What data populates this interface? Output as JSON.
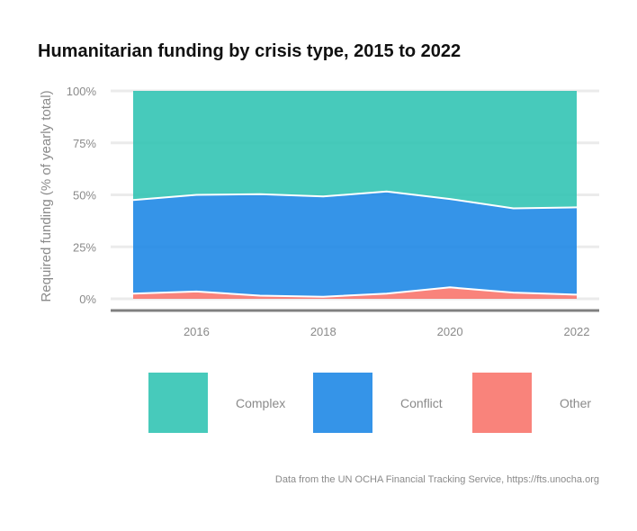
{
  "chart_data": {
    "type": "area",
    "stacked": "percent",
    "title": "Humanitarian funding by crisis type, 2015 to 2022",
    "xlabel": "",
    "ylabel": "Required funding (% of yearly total)",
    "x": [
      2015,
      2016,
      2017,
      2018,
      2019,
      2020,
      2021,
      2022
    ],
    "x_ticks": [
      "2016",
      "2018",
      "2020",
      "2022"
    ],
    "y_ticks": [
      "0%",
      "25%",
      "50%",
      "75%",
      "100%"
    ],
    "ylim": [
      0,
      100
    ],
    "grid": true,
    "legend_position": "bottom",
    "series": [
      {
        "name": "Other",
        "color": "#f8766d",
        "values": [
          2.5,
          3.5,
          1.5,
          1.0,
          2.5,
          5.5,
          3.0,
          2.0
        ]
      },
      {
        "name": "Conflict",
        "color": "#1f88e5",
        "values": [
          45.0,
          46.5,
          48.8,
          48.2,
          49.1,
          42.5,
          40.5,
          42.0
        ]
      },
      {
        "name": "Complex",
        "color": "#33c4b4",
        "values": [
          52.5,
          50.0,
          49.7,
          50.8,
          48.4,
          52.0,
          56.5,
          56.0
        ]
      }
    ],
    "legend_order": [
      "Complex",
      "Conflict",
      "Other"
    ]
  },
  "caption": "Data from the UN OCHA Financial Tracking Service, https://fts.unocha.org"
}
